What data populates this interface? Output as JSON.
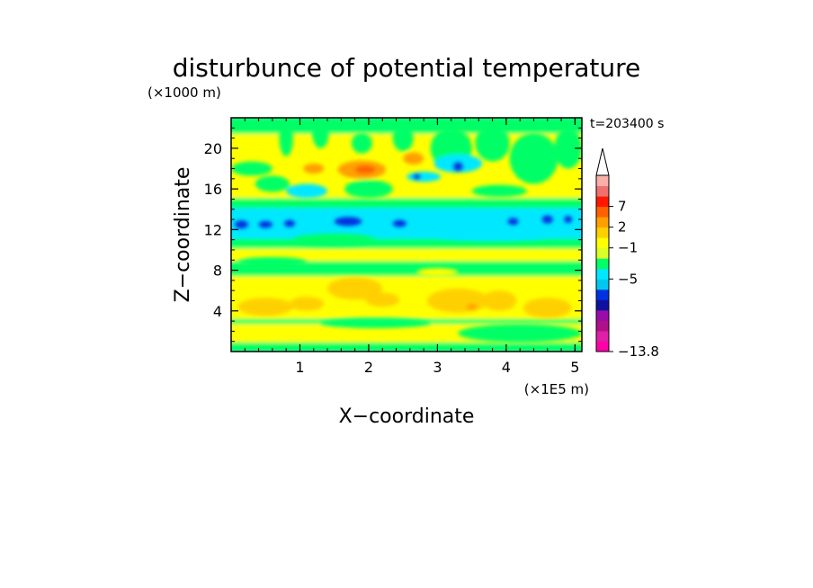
{
  "chart_data": {
    "type": "heatmap",
    "title": "disturbunce of potential temperature",
    "ylabel": "Z−coordinate",
    "xlabel": "X−coordinate",
    "y_unit": "(×1000 m)",
    "x_unit": "(×1E5 m)",
    "time_label": "t=203400 s",
    "xlim": [
      0,
      5.1
    ],
    "ylim": [
      0,
      23
    ],
    "x_ticks": [
      1,
      2,
      3,
      4,
      5
    ],
    "y_ticks": [
      4,
      8,
      12,
      16,
      20
    ],
    "x_tick_labels": [
      "1",
      "2",
      "3",
      "4",
      "5"
    ],
    "y_tick_labels": [
      "4",
      "8",
      "12",
      "16",
      "20"
    ],
    "colorbar": {
      "min_label": "−13.8",
      "labeled_levels": [
        "7",
        "2",
        "−1",
        "−5",
        "−13.8"
      ],
      "extend": "max",
      "colors": [
        "#ff00aa",
        "#e01ea8",
        "#b0108a",
        "#9a0caa",
        "#1010a0",
        "#0030e0",
        "#00c8f0",
        "#00e8ff",
        "#00ff66",
        "#d8ff28",
        "#ffff00",
        "#ffd000",
        "#ffa000",
        "#ff6000",
        "#ff1800",
        "#f07070",
        "#f8b0a8"
      ]
    },
    "bands": [
      {
        "z0": 0.0,
        "z1": 1.0,
        "color": "#00ff66"
      },
      {
        "z0": 1.0,
        "z1": 2.8,
        "color": "#ffff00"
      },
      {
        "z0": 2.8,
        "z1": 3.3,
        "color": "#00ff66"
      },
      {
        "z0": 3.3,
        "z1": 7.5,
        "color": "#ffff00"
      },
      {
        "z0": 7.5,
        "z1": 9.0,
        "color": "#00ff66"
      },
      {
        "z0": 9.0,
        "z1": 10.2,
        "color": "#ffff00"
      },
      {
        "z0": 10.2,
        "z1": 11.2,
        "color": "#00ff66"
      },
      {
        "z0": 11.2,
        "z1": 14.2,
        "color": "#00e8ff"
      },
      {
        "z0": 14.2,
        "z1": 15.2,
        "color": "#00ff66"
      },
      {
        "z0": 15.2,
        "z1": 21.5,
        "color": "#ffff00"
      },
      {
        "z0": 21.5,
        "z1": 23.0,
        "color": "#00ff66"
      }
    ],
    "blobs": [
      {
        "x": 0.3,
        "z": 18.0,
        "rx": 0.3,
        "rz": 0.7,
        "color": "#00ff66"
      },
      {
        "x": 0.8,
        "z": 21.0,
        "rx": 0.1,
        "rz": 1.8,
        "color": "#00ff66"
      },
      {
        "x": 1.3,
        "z": 21.5,
        "rx": 0.12,
        "rz": 1.5,
        "color": "#00ff66"
      },
      {
        "x": 1.9,
        "z": 20.5,
        "rx": 0.15,
        "rz": 1.0,
        "color": "#00ff66"
      },
      {
        "x": 2.5,
        "z": 21.0,
        "rx": 0.15,
        "rz": 1.3,
        "color": "#00ff66"
      },
      {
        "x": 3.2,
        "z": 20.0,
        "rx": 0.3,
        "rz": 2.0,
        "color": "#00ff66"
      },
      {
        "x": 3.8,
        "z": 20.5,
        "rx": 0.25,
        "rz": 1.8,
        "color": "#00ff66"
      },
      {
        "x": 4.4,
        "z": 19.0,
        "rx": 0.35,
        "rz": 2.5,
        "color": "#00ff66"
      },
      {
        "x": 4.9,
        "z": 20.0,
        "rx": 0.2,
        "rz": 2.0,
        "color": "#00ff66"
      },
      {
        "x": 3.3,
        "z": 18.5,
        "rx": 0.35,
        "rz": 0.9,
        "color": "#00e8ff"
      },
      {
        "x": 2.8,
        "z": 17.2,
        "rx": 0.25,
        "rz": 0.5,
        "color": "#00e8ff"
      },
      {
        "x": 0.6,
        "z": 16.5,
        "rx": 0.25,
        "rz": 0.8,
        "color": "#00ff66"
      },
      {
        "x": 1.1,
        "z": 15.8,
        "rx": 0.3,
        "rz": 0.7,
        "color": "#00e8ff"
      },
      {
        "x": 2.0,
        "z": 16.0,
        "rx": 0.35,
        "rz": 0.9,
        "color": "#00ff66"
      },
      {
        "x": 3.9,
        "z": 15.8,
        "rx": 0.4,
        "rz": 0.6,
        "color": "#00ff66"
      },
      {
        "x": 1.2,
        "z": 18.0,
        "rx": 0.15,
        "rz": 0.5,
        "color": "#ffa000"
      },
      {
        "x": 1.9,
        "z": 17.9,
        "rx": 0.35,
        "rz": 0.9,
        "color": "#ffa000"
      },
      {
        "x": 2.65,
        "z": 19.0,
        "rx": 0.15,
        "rz": 0.6,
        "color": "#ffa000"
      },
      {
        "x": 1.95,
        "z": 17.9,
        "rx": 0.15,
        "rz": 0.4,
        "color": "#ff6000"
      },
      {
        "x": 0.15,
        "z": 12.5,
        "rx": 0.1,
        "rz": 0.4,
        "color": "#0030e0"
      },
      {
        "x": 0.5,
        "z": 12.5,
        "rx": 0.1,
        "rz": 0.35,
        "color": "#0030e0"
      },
      {
        "x": 0.85,
        "z": 12.6,
        "rx": 0.08,
        "rz": 0.35,
        "color": "#0030e0"
      },
      {
        "x": 1.7,
        "z": 12.8,
        "rx": 0.2,
        "rz": 0.45,
        "color": "#0030e0"
      },
      {
        "x": 2.45,
        "z": 12.6,
        "rx": 0.1,
        "rz": 0.35,
        "color": "#0030e0"
      },
      {
        "x": 3.3,
        "z": 18.2,
        "rx": 0.08,
        "rz": 0.5,
        "color": "#0030e0"
      },
      {
        "x": 2.7,
        "z": 17.2,
        "rx": 0.06,
        "rz": 0.3,
        "color": "#0030e0"
      },
      {
        "x": 4.1,
        "z": 12.8,
        "rx": 0.08,
        "rz": 0.35,
        "color": "#0030e0"
      },
      {
        "x": 4.6,
        "z": 13.0,
        "rx": 0.08,
        "rz": 0.4,
        "color": "#0030e0"
      },
      {
        "x": 4.9,
        "z": 13.0,
        "rx": 0.06,
        "rz": 0.35,
        "color": "#0030e0"
      },
      {
        "x": 1.5,
        "z": 11.0,
        "rx": 0.6,
        "rz": 0.6,
        "color": "#00ff66"
      },
      {
        "x": 3.8,
        "z": 11.4,
        "rx": 0.8,
        "rz": 0.5,
        "color": "#00e8ff"
      },
      {
        "x": 0.5,
        "z": 4.4,
        "rx": 0.4,
        "rz": 0.9,
        "color": "#ffd000"
      },
      {
        "x": 1.1,
        "z": 4.7,
        "rx": 0.25,
        "rz": 0.7,
        "color": "#ffd000"
      },
      {
        "x": 1.8,
        "z": 6.2,
        "rx": 0.4,
        "rz": 1.1,
        "color": "#ffd000"
      },
      {
        "x": 2.2,
        "z": 5.1,
        "rx": 0.25,
        "rz": 0.7,
        "color": "#ffd000"
      },
      {
        "x": 3.3,
        "z": 5.0,
        "rx": 0.45,
        "rz": 1.2,
        "color": "#ffd000"
      },
      {
        "x": 3.9,
        "z": 5.0,
        "rx": 0.25,
        "rz": 1.0,
        "color": "#ffd000"
      },
      {
        "x": 4.6,
        "z": 4.3,
        "rx": 0.35,
        "rz": 1.0,
        "color": "#ffd000"
      },
      {
        "x": 3.5,
        "z": 4.4,
        "rx": 0.08,
        "rz": 0.3,
        "color": "#ffa000"
      },
      {
        "x": 2.1,
        "z": 2.8,
        "rx": 0.8,
        "rz": 0.5,
        "color": "#00ff66"
      },
      {
        "x": 4.2,
        "z": 1.8,
        "rx": 0.9,
        "rz": 0.9,
        "color": "#00ff66"
      },
      {
        "x": 0.6,
        "z": 8.8,
        "rx": 0.5,
        "rz": 0.5,
        "color": "#00ff66"
      },
      {
        "x": 3.0,
        "z": 7.8,
        "rx": 0.3,
        "rz": 0.4,
        "color": "#ffff00"
      }
    ]
  }
}
